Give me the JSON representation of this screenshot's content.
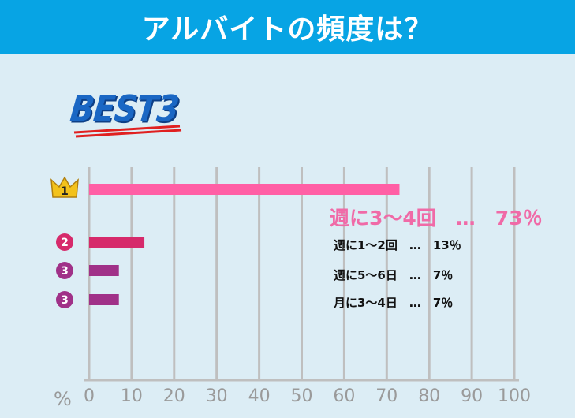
{
  "header": {
    "title": "アルバイトの頻度は？"
  },
  "badge": {
    "text": "BEST3"
  },
  "colors": {
    "header_bg": "#07a4e4",
    "background": "#dcedf5",
    "bar_rank1": "#ff5fa5",
    "bar_rank2": "#d62a6b",
    "bar_rank3": "#a03188",
    "label_rank1": "#f06aa7",
    "grid": "#bfbfbf",
    "crown": "#f3c21b"
  },
  "chart_data": {
    "type": "bar",
    "orientation": "horizontal",
    "xlim": [
      0,
      100
    ],
    "xticks": [
      "0",
      "10",
      "20",
      "30",
      "40",
      "50",
      "60",
      "70",
      "80",
      "90",
      "100"
    ],
    "unit": "%",
    "grid": true,
    "bars": [
      {
        "rank": "1",
        "label": "週に3～4回　…　73％",
        "value": 73,
        "icon": "crown-icon"
      },
      {
        "rank": "2",
        "label": "週に1～2回　…　13％",
        "value": 13
      },
      {
        "rank": "3",
        "label": "週に5～6日　…　7％",
        "value": 7
      },
      {
        "rank": "3",
        "label": "月に3～4日　…　7％",
        "value": 7
      }
    ]
  }
}
